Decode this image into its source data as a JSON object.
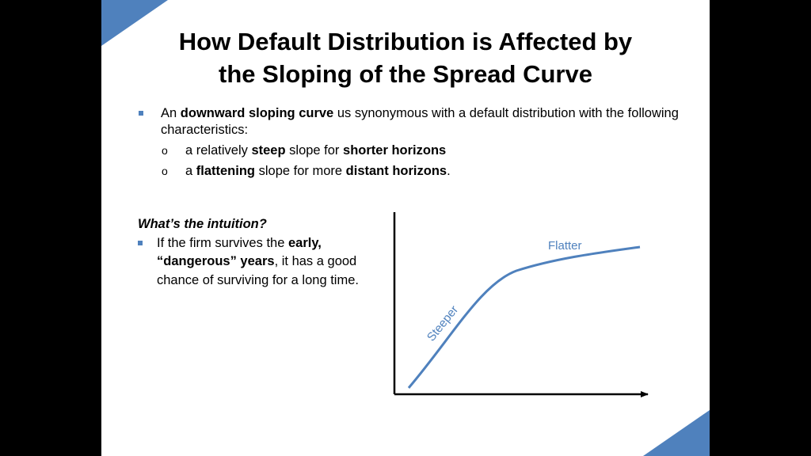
{
  "title": {
    "line1": "How Default Distribution is Affected by",
    "line2": "the Sloping of the Spread Curve"
  },
  "bullet": {
    "t1": "An ",
    "t2": "downward sloping curve",
    "t3": " us synonymous with a default distribution with the following characteristics:"
  },
  "sub1": {
    "t1": "a relatively ",
    "t2": "steep",
    "t3": " slope for ",
    "t4": "shorter horizons"
  },
  "sub2": {
    "t1": "a ",
    "t2": "flattening",
    "t3": " slope for more ",
    "t4": "distant horizons",
    "t5": "."
  },
  "intuition": {
    "heading": "What’s the intuition?",
    "t1": "If the firm survives the ",
    "t2": "early, “dangerous” years",
    "t3": ", it has a good chance of surviving for a long time."
  },
  "chart_data": {
    "type": "line",
    "annotations": [
      "Steeper",
      "Flatter"
    ],
    "xlabel": "",
    "ylabel": "",
    "curve_color": "#4f81bd"
  },
  "colors": {
    "accent": "#4f81bd"
  }
}
